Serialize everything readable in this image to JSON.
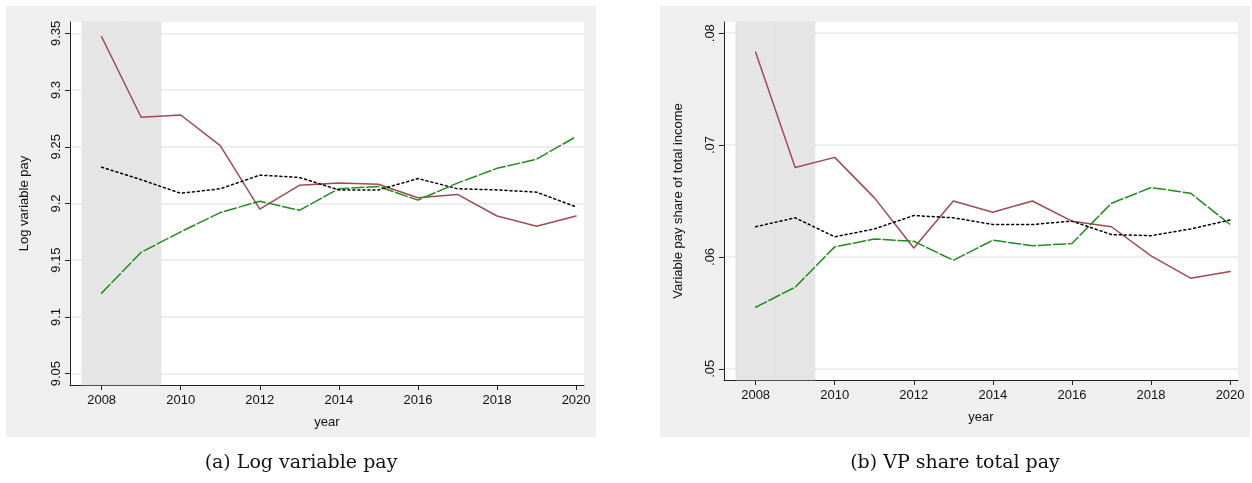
{
  "chart_data": [
    {
      "type": "line",
      "ylabel": "Log variable pay",
      "xlabel": "year",
      "annotations": [
        "(a) Log variable pay"
      ],
      "x": [
        2008,
        2009,
        2010,
        2011,
        2012,
        2013,
        2014,
        2015,
        2016,
        2017,
        2018,
        2019,
        2020
      ],
      "xlim": [
        2007.2,
        2020.2
      ],
      "xticks": [
        2008,
        2010,
        2012,
        2014,
        2016,
        2018,
        2020
      ],
      "ylim": [
        9.04,
        9.36
      ],
      "yticks": [
        9.05,
        9.1,
        9.15,
        9.2,
        9.25,
        9.3,
        9.35
      ],
      "grid": "y",
      "marker": "none",
      "bands": [
        {
          "axis": "x",
          "from": 2007.5,
          "to": 2008.5,
          "color": "#e5e5e5"
        },
        {
          "axis": "x",
          "from": 2008.5,
          "to": 2009.5,
          "color": "#e5e5e5"
        }
      ],
      "series": [
        {
          "color": "#a04a50",
          "line_style": "solid",
          "values": [
            9.347,
            9.276,
            9.278,
            9.251,
            9.195,
            9.216,
            9.218,
            9.217,
            9.205,
            9.208,
            9.189,
            9.18,
            9.189
          ]
        },
        {
          "color": "#1e8c1e",
          "line_style": "dashed",
          "values": [
            9.121,
            9.157,
            9.175,
            9.192,
            9.202,
            9.194,
            9.213,
            9.215,
            9.203,
            9.218,
            9.231,
            9.239,
            9.259
          ]
        },
        {
          "color": "#000000",
          "line_style": "dotted",
          "values": [
            9.232,
            9.221,
            9.209,
            9.213,
            9.225,
            9.223,
            9.212,
            9.212,
            9.222,
            9.213,
            9.212,
            9.21,
            9.197
          ]
        }
      ]
    },
    {
      "type": "line",
      "ylabel": "Variable pay share of total income",
      "xlabel": "year",
      "annotations": [
        "(b) VP share total pay"
      ],
      "x": [
        2008,
        2009,
        2010,
        2011,
        2012,
        2013,
        2014,
        2015,
        2016,
        2017,
        2018,
        2019,
        2020
      ],
      "xlim": [
        2007.2,
        2020.2
      ],
      "xticks": [
        2008,
        2010,
        2012,
        2014,
        2016,
        2018,
        2020
      ],
      "ylim": [
        0.049,
        0.081
      ],
      "yticks": [
        {
          "value": 0.05,
          "label": ".05"
        },
        {
          "value": 0.06,
          "label": ".06"
        },
        {
          "value": 0.07,
          "label": ".07"
        },
        {
          "value": 0.08,
          "label": ".08"
        }
      ],
      "grid": "y",
      "marker": "none",
      "bands": [
        {
          "axis": "x",
          "from": 2007.5,
          "to": 2008.5,
          "color": "#e5e5e5"
        },
        {
          "axis": "x",
          "from": 2008.5,
          "to": 2009.5,
          "color": "#e5e5e5"
        }
      ],
      "series": [
        {
          "color": "#a04a50",
          "line_style": "solid",
          "values": [
            0.0783,
            0.068,
            0.0689,
            0.0653,
            0.0608,
            0.065,
            0.064,
            0.065,
            0.0632,
            0.0627,
            0.0601,
            0.0581,
            0.0587
          ]
        },
        {
          "color": "#1e8c1e",
          "line_style": "dashed",
          "values": [
            0.0555,
            0.0573,
            0.0609,
            0.0616,
            0.0614,
            0.0597,
            0.0615,
            0.061,
            0.0612,
            0.0648,
            0.0662,
            0.0657,
            0.0629
          ]
        },
        {
          "color": "#000000",
          "line_style": "dotted",
          "values": [
            0.0627,
            0.0635,
            0.0618,
            0.0625,
            0.0637,
            0.0635,
            0.0629,
            0.0629,
            0.0632,
            0.062,
            0.0619,
            0.0625,
            0.0633
          ]
        }
      ]
    }
  ]
}
